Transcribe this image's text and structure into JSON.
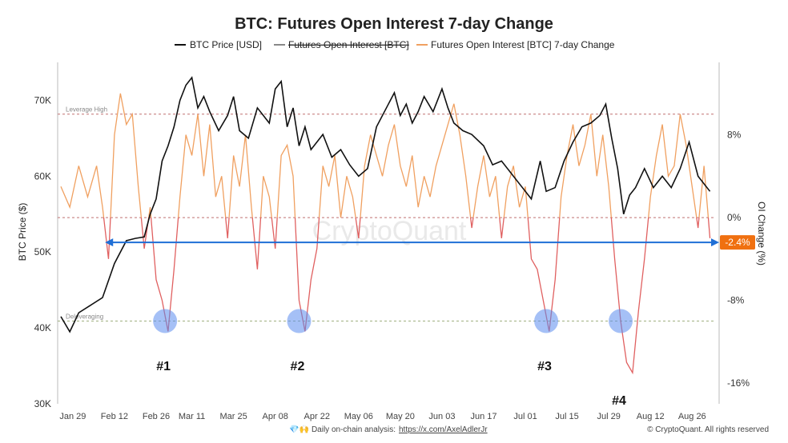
{
  "chart_data": {
    "type": "line",
    "title": "BTC: Futures Open Interest 7-day Change",
    "legend": {
      "placement": "top-center",
      "entries": [
        {
          "label": "BTC Price [USD]",
          "color": "#111111",
          "style": "solid"
        },
        {
          "label": "Futures Open Interest [BTC]",
          "color": "#888888",
          "style": "strikethrough"
        },
        {
          "label": "Futures Open Interest [BTC] 7-day Change",
          "color": "#f0a060",
          "style": "solid"
        }
      ]
    },
    "left_axis": {
      "label": "BTC Price ($)",
      "ticks": [
        "30K",
        "40K",
        "50K",
        "60K",
        "70K"
      ],
      "tick_values": [
        30000,
        40000,
        50000,
        60000,
        70000
      ],
      "range": [
        30000,
        75000
      ]
    },
    "right_axis": {
      "label": "OI Change (%)",
      "ticks": [
        "-16%",
        "-8%",
        "0%",
        "8%"
      ],
      "tick_values": [
        -16,
        -8,
        0,
        8
      ],
      "range": [
        -18,
        15
      ]
    },
    "x_ticks": [
      "Jan 29",
      "Feb 12",
      "Feb 26",
      "Mar 11",
      "Mar 25",
      "Apr 08",
      "Apr 22",
      "May 06",
      "May 20",
      "Jun 03",
      "Jun 17",
      "Jul 01",
      "Jul 15",
      "Jul 29",
      "Aug 12",
      "Aug 26"
    ],
    "x_tick_index": [
      4,
      18,
      32,
      44,
      58,
      72,
      86,
      100,
      114,
      128,
      142,
      156,
      170,
      184,
      198,
      212
    ],
    "x_range_index": [
      0,
      220
    ],
    "grid": false,
    "levels": [
      {
        "label": "Leverage High",
        "value_pct": 10,
        "color": "#c07070"
      },
      {
        "label": "",
        "value_pct": 0,
        "color": "#c07070"
      },
      {
        "label": "Deleveraging",
        "value_pct": -10,
        "color": "#a0b080"
      }
    ],
    "current_level": {
      "label": "-2.4%",
      "value_pct": -2.4,
      "color": "#1f6fd6",
      "badge_color": "#f07010"
    },
    "markers": [
      {
        "label": "#1",
        "x_index": 35,
        "value_pct": -10
      },
      {
        "label": "#2",
        "x_index": 80,
        "value_pct": -10
      },
      {
        "label": "#3",
        "x_index": 163,
        "value_pct": -10
      },
      {
        "label": "#4",
        "x_index": 188,
        "value_pct": -10
      }
    ],
    "series": [
      {
        "name": "BTC Price [USD]",
        "axis": "left",
        "color": "#111111",
        "x_index": [
          0,
          3,
          6,
          10,
          14,
          18,
          22,
          25,
          28,
          30,
          32,
          34,
          36,
          38,
          40,
          42,
          44,
          46,
          48,
          50,
          53,
          56,
          58,
          60,
          63,
          66,
          70,
          72,
          74,
          76,
          78,
          80,
          82,
          84,
          86,
          88,
          91,
          94,
          97,
          100,
          103,
          106,
          110,
          112,
          114,
          116,
          118,
          120,
          122,
          125,
          128,
          130,
          132,
          135,
          138,
          142,
          145,
          148,
          152,
          155,
          158,
          161,
          163,
          166,
          169,
          172,
          175,
          178,
          181,
          183,
          185,
          187,
          189,
          191,
          193,
          196,
          199,
          202,
          205,
          208,
          211,
          214,
          216,
          218
        ],
        "values": [
          41500,
          39500,
          42000,
          43000,
          44000,
          48500,
          51500,
          51800,
          52000,
          55000,
          57000,
          62000,
          64000,
          66500,
          70000,
          72000,
          73000,
          69000,
          70500,
          68500,
          66000,
          68000,
          70500,
          66000,
          65000,
          69000,
          67000,
          71500,
          72500,
          66500,
          69000,
          64000,
          66500,
          63500,
          64500,
          65500,
          62500,
          63500,
          61500,
          60000,
          61000,
          66500,
          69500,
          71000,
          68000,
          69500,
          67000,
          68500,
          70500,
          68500,
          71500,
          69000,
          67000,
          66000,
          65500,
          64000,
          61500,
          62000,
          60000,
          58500,
          57000,
          62000,
          58000,
          58500,
          62000,
          64500,
          66500,
          67000,
          68000,
          69500,
          65000,
          61000,
          55000,
          57500,
          58500,
          61000,
          58500,
          60000,
          58500,
          61000,
          64500,
          60000,
          59000,
          58000
        ]
      },
      {
        "name": "Futures Open Interest [BTC] 7-day Change",
        "axis": "right",
        "color": "#f0a060",
        "negative_color": "#e06060",
        "x_index": [
          0,
          3,
          6,
          9,
          12,
          14,
          16,
          18,
          20,
          22,
          24,
          26,
          28,
          30,
          32,
          34,
          36,
          38,
          40,
          42,
          44,
          46,
          48,
          50,
          52,
          54,
          56,
          58,
          60,
          62,
          64,
          66,
          68,
          70,
          72,
          74,
          76,
          78,
          80,
          82,
          84,
          86,
          88,
          90,
          92,
          94,
          96,
          98,
          100,
          102,
          104,
          106,
          108,
          110,
          112,
          114,
          116,
          118,
          120,
          122,
          124,
          126,
          128,
          130,
          132,
          134,
          136,
          138,
          140,
          142,
          144,
          146,
          148,
          150,
          152,
          154,
          156,
          158,
          160,
          162,
          164,
          166,
          168,
          170,
          172,
          174,
          176,
          178,
          180,
          182,
          184,
          186,
          188,
          190,
          192,
          194,
          196,
          198,
          200,
          202,
          204,
          206,
          208,
          210,
          212,
          214,
          216,
          218
        ],
        "values": [
          3,
          1,
          5,
          2,
          5,
          1,
          -4,
          8,
          12,
          9,
          10,
          3,
          -3,
          1,
          -6,
          -8,
          -11,
          -5,
          2,
          8,
          6,
          10,
          4,
          9,
          2,
          4,
          -2,
          6,
          3,
          8,
          1,
          -5,
          4,
          2,
          -3,
          6,
          7,
          4,
          -8,
          -11,
          -6,
          -3,
          5,
          3,
          6,
          0,
          4,
          2,
          -2,
          5,
          8,
          6,
          4,
          7,
          9,
          5,
          3,
          6,
          1,
          4,
          2,
          5,
          7,
          9,
          11,
          8,
          4,
          -1,
          3,
          6,
          2,
          4,
          -2,
          3,
          5,
          1,
          3,
          -4,
          -5,
          -8,
          -11,
          -6,
          2,
          6,
          9,
          5,
          7,
          10,
          4,
          8,
          3,
          -4,
          -10,
          -14,
          -15,
          -9,
          -4,
          2,
          6,
          9,
          4,
          5,
          10,
          7,
          3,
          -1,
          5,
          -2
        ]
      }
    ]
  },
  "watermark": "CryptoQuant",
  "footer": {
    "prefix": "💎🙌 Daily on-chain analysis:",
    "link": "https://x.com/AxelAdlerJr",
    "credit": "© CryptoQuant. All rights reserved"
  }
}
